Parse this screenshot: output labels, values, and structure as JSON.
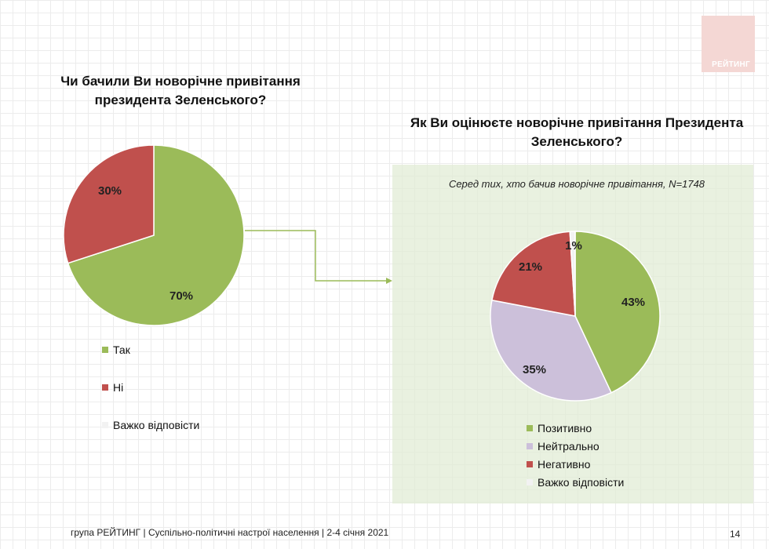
{
  "logo_text": "РЕЙТИНГ",
  "footer": {
    "text": "група РЕЙТИНГ | Суспільно-політичні настрої населення  | 2-4 січня 2021",
    "page_number": "14"
  },
  "chart_data": [
    {
      "type": "pie",
      "title": "Чи бачили Ви новорічне привітання президента Зеленського?",
      "categories": [
        "Так",
        "Ні",
        "Важко відповісти"
      ],
      "values": [
        70,
        30,
        0
      ],
      "labels": [
        "70%",
        "30%",
        ""
      ],
      "colors": [
        "#9bbb59",
        "#c0504d",
        "#f2f2f2"
      ],
      "legend": "bottom-left"
    },
    {
      "type": "pie",
      "title": "Як Ви оцінюєте новорічне привітання Президента Зеленського?",
      "subtitle": "Серед тих, хто бачив новорічне привітання, N=1748",
      "categories": [
        "Позитивно",
        "Нейтрально",
        "Негативно",
        "Важко відповісти"
      ],
      "values": [
        43,
        35,
        21,
        1
      ],
      "labels": [
        "43%",
        "35%",
        "21%",
        "1%"
      ],
      "colors": [
        "#9bbb59",
        "#ccc0da",
        "#c0504d",
        "#f2f2f2"
      ],
      "legend": "bottom"
    }
  ]
}
